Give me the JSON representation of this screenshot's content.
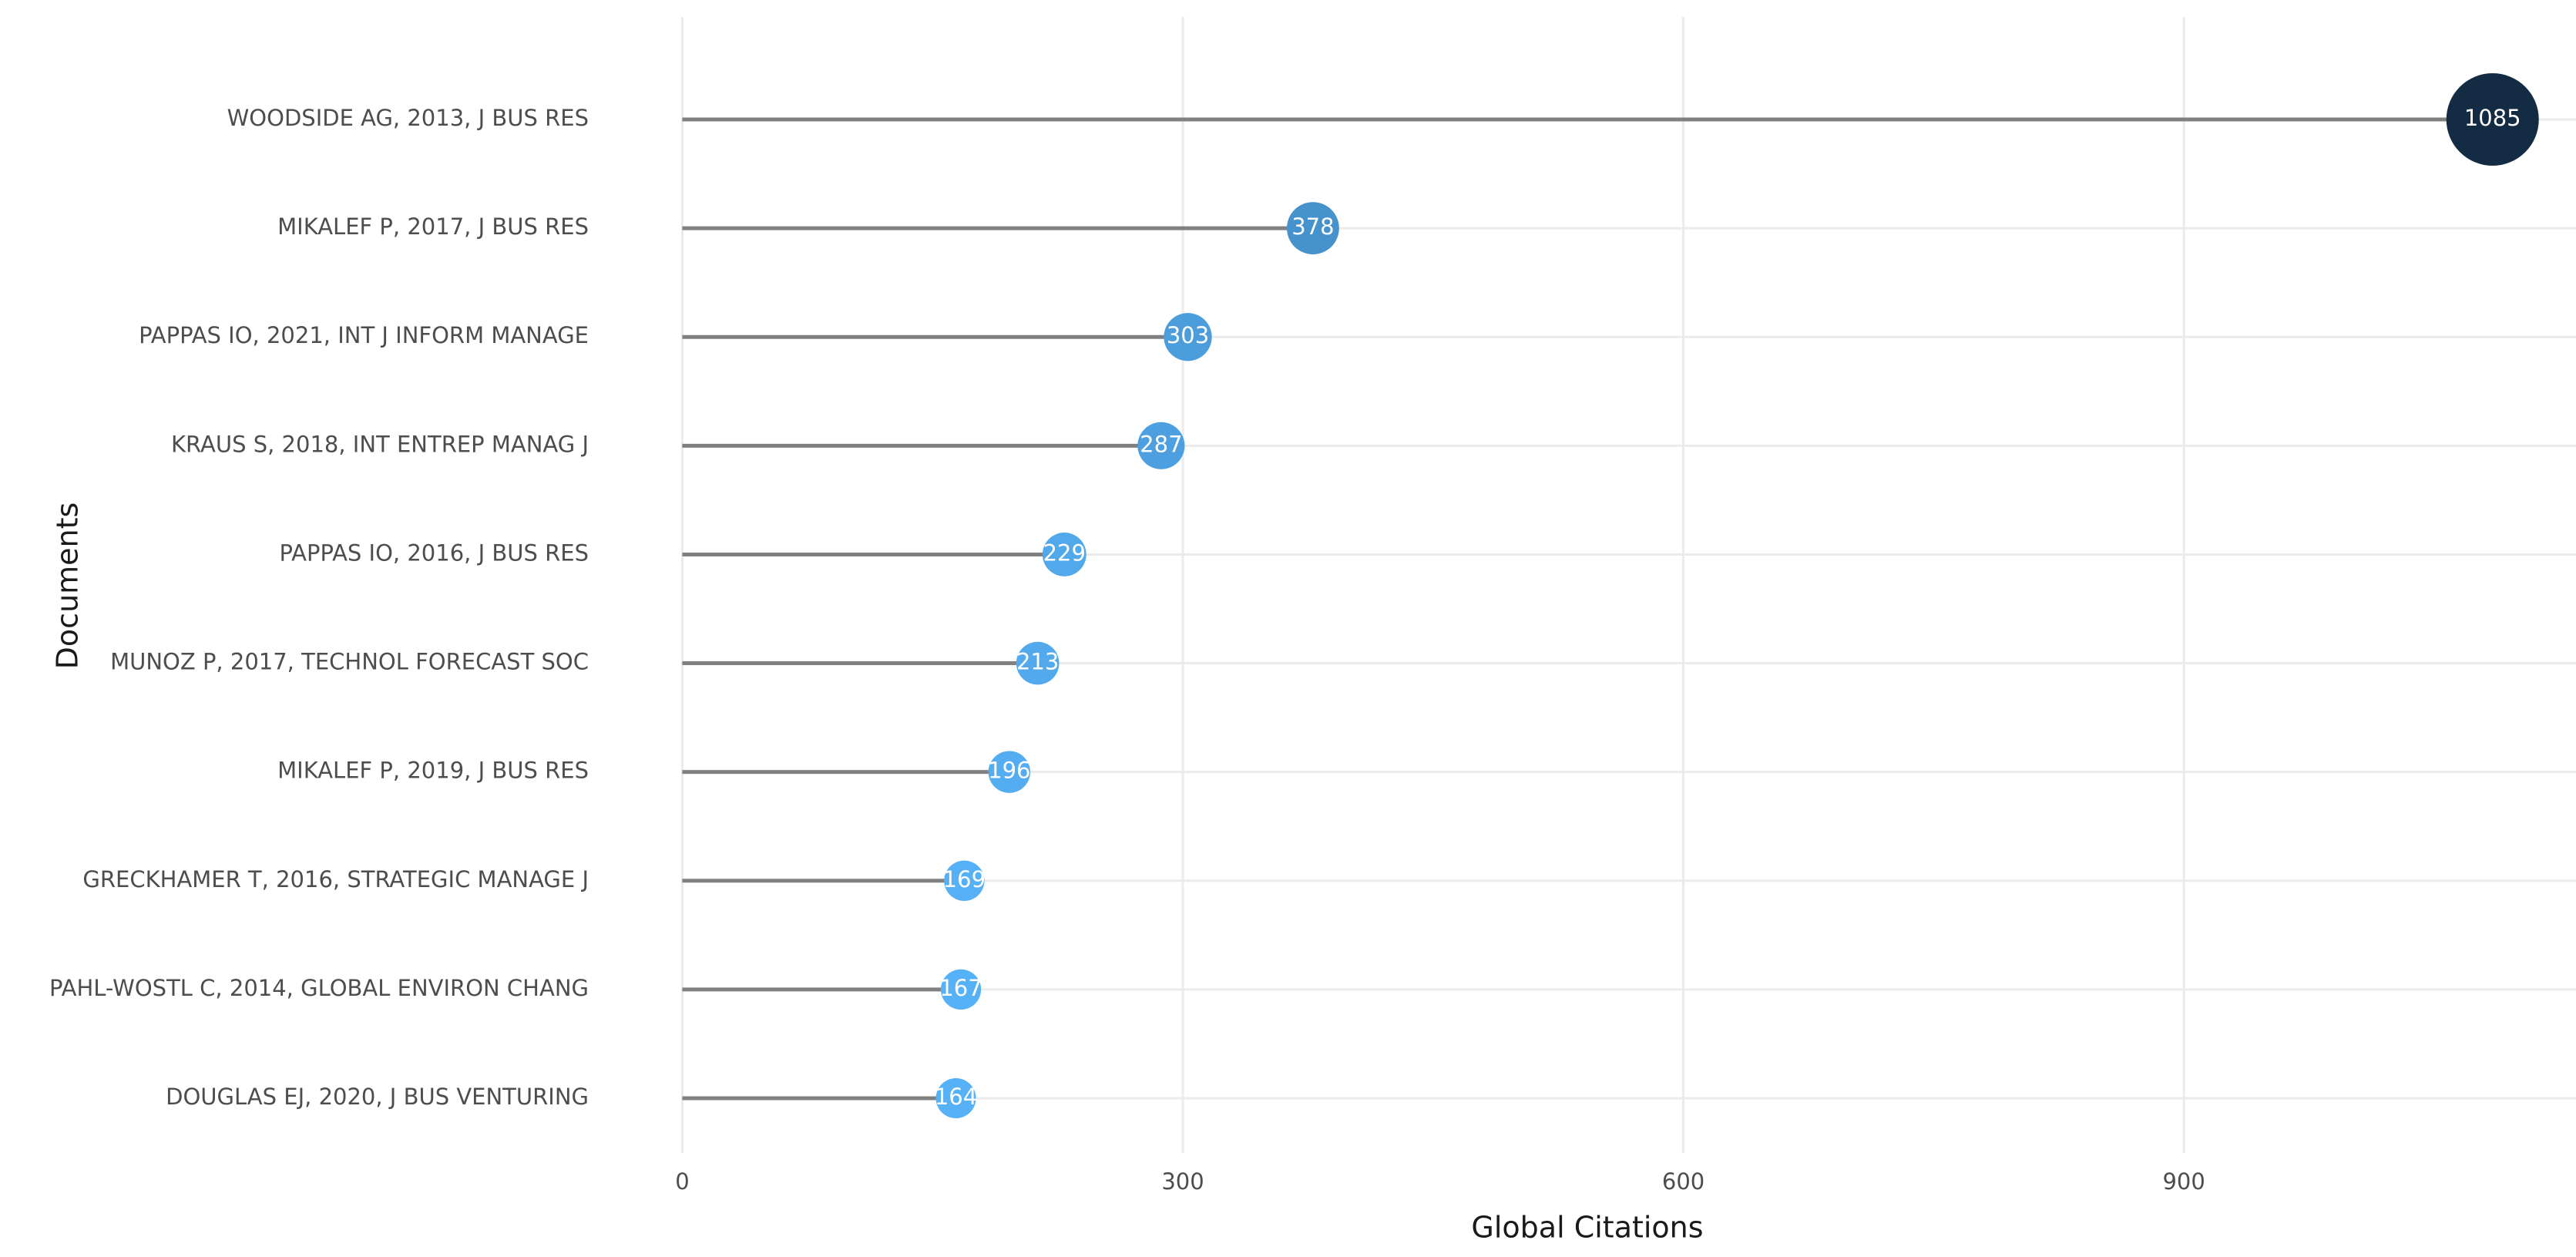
{
  "chart_data": {
    "type": "lollipop",
    "x_label": "Global Citations",
    "y_label": "Documents",
    "categories": [
      "WOODSIDE AG, 2013, J BUS RES",
      "MIKALEF P, 2017, J BUS RES",
      "PAPPAS IO, 2021, INT J INFORM MANAGE",
      "KRAUS S, 2018, INT ENTREP MANAG J",
      "PAPPAS IO, 2016, J BUS RES",
      "MUNOZ P, 2017, TECHNOL FORECAST SOC",
      "MIKALEF P, 2019, J BUS RES",
      "GRECKHAMER T, 2016, STRATEGIC MANAGE J",
      "PAHL-WOSTL C, 2014, GLOBAL ENVIRON CHANG",
      "DOUGLAS EJ, 2020, J BUS VENTURING"
    ],
    "values": [
      1085,
      378,
      303,
      287,
      229,
      213,
      196,
      169,
      167,
      164
    ],
    "xlim": [
      -45,
      1135
    ],
    "xticks": [
      0,
      300,
      600,
      900
    ],
    "grid": true,
    "stem_color": "#808080",
    "color_low": "#56B1F7",
    "color_high": "#132B43"
  }
}
